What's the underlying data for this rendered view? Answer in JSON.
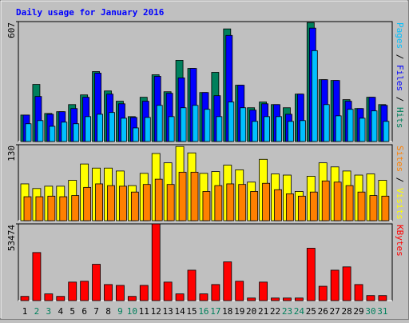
{
  "chart_data": [
    {
      "type": "bar",
      "title": "Daily usage for January 2016",
      "title_color": "#0000ff",
      "ylim": [
        0,
        607
      ],
      "yticks": [
        607
      ],
      "legend_separator": " / ",
      "series": [
        {
          "name": "Hits",
          "color": "#00805c",
          "values": [
            134,
            289,
            142,
            151,
            187,
            236,
            354,
            256,
            204,
            126,
            224,
            338,
            252,
            411,
            370,
            248,
            350,
            570,
            285,
            171,
            200,
            187,
            171,
            240,
            602,
            313,
            309,
            212,
            167,
            224,
            187
          ]
        },
        {
          "name": "Files",
          "color": "#0000ff",
          "values": [
            134,
            228,
            138,
            151,
            167,
            224,
            346,
            240,
            191,
            122,
            204,
            330,
            244,
            322,
            370,
            248,
            232,
            537,
            285,
            159,
            191,
            187,
            138,
            240,
            574,
            313,
            309,
            204,
            167,
            224,
            183
          ]
        },
        {
          "name": "Pages",
          "color": "#00c0ff",
          "values": [
            90,
            106,
            77,
            98,
            90,
            126,
            138,
            147,
            118,
            69,
            122,
            183,
            126,
            171,
            183,
            163,
            126,
            200,
            171,
            102,
            126,
            126,
            102,
            106,
            460,
            187,
            130,
            163,
            118,
            155,
            102
          ]
        }
      ]
    },
    {
      "type": "bar",
      "ylim": [
        0,
        130
      ],
      "yticks": [
        130
      ],
      "legend_separator": " / ",
      "series": [
        {
          "name": "Visits",
          "color": "#ffff00",
          "values": [
            63,
            55,
            59,
            59,
            69,
            97,
            90,
            90,
            85,
            60,
            81,
            115,
            99,
            127,
            116,
            81,
            84,
            95,
            87,
            66,
            105,
            80,
            78,
            50,
            76,
            99,
            92,
            85,
            78,
            80,
            69
          ]
        },
        {
          "name": "Sites",
          "color": "#ff8000",
          "values": [
            41,
            41,
            42,
            41,
            43,
            57,
            63,
            60,
            59,
            49,
            62,
            71,
            62,
            83,
            83,
            50,
            60,
            63,
            62,
            50,
            64,
            53,
            46,
            42,
            49,
            68,
            66,
            60,
            49,
            43,
            42
          ]
        }
      ]
    },
    {
      "type": "bar",
      "ylim": [
        0,
        53474
      ],
      "yticks": [
        53474
      ],
      "categories": [
        "1",
        "2",
        "3",
        "4",
        "5",
        "6",
        "7",
        "8",
        "9",
        "10",
        "11",
        "12",
        "13",
        "14",
        "15",
        "16",
        "17",
        "18",
        "19",
        "20",
        "21",
        "22",
        "23",
        "24",
        "25",
        "26",
        "27",
        "28",
        "29",
        "30",
        "31"
      ],
      "category_colors": [
        "#000000",
        "#00805c",
        "#00805c",
        "#000000",
        "#000000",
        "#000000",
        "#000000",
        "#000000",
        "#00805c",
        "#00805c",
        "#000000",
        "#000000",
        "#000000",
        "#000000",
        "#000000",
        "#00805c",
        "#00805c",
        "#000000",
        "#000000",
        "#000000",
        "#000000",
        "#000000",
        "#00805c",
        "#00805c",
        "#000000",
        "#000000",
        "#000000",
        "#000000",
        "#000000",
        "#00805c",
        "#00805c"
      ],
      "series": [
        {
          "name": "KBytes",
          "color": "#ff0000",
          "values": [
            2940,
            33500,
            4700,
            2940,
            12900,
            13500,
            25300,
            11200,
            10600,
            2940,
            10600,
            53474,
            12900,
            4700,
            21200,
            4700,
            11200,
            27000,
            13500,
            1800,
            12900,
            1800,
            1800,
            1800,
            36500,
            10000,
            21200,
            23500,
            11200,
            3500,
            3500
          ]
        }
      ]
    }
  ]
}
